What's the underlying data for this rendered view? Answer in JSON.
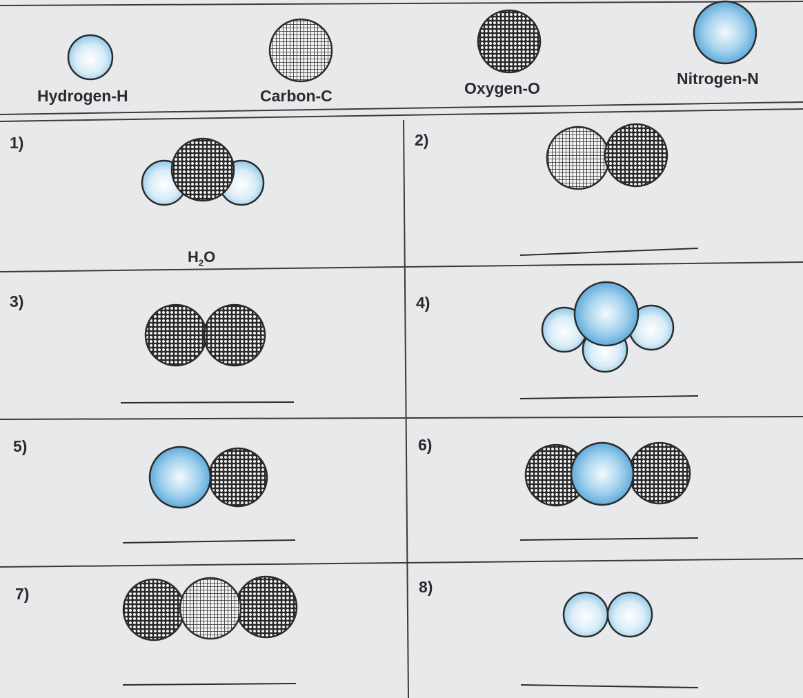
{
  "legend": {
    "hydrogen": "Hydrogen-H",
    "carbon": "Carbon-C",
    "oxygen": "Oxygen-O",
    "nitrogen": "Nitrogen-N"
  },
  "cells": [
    {
      "number": "1)",
      "atoms": [
        "H",
        "O",
        "H"
      ],
      "answer": "H2O"
    },
    {
      "number": "2)",
      "atoms": [
        "C",
        "O"
      ],
      "answer": ""
    },
    {
      "number": "3)",
      "atoms": [
        "O",
        "O"
      ],
      "answer": ""
    },
    {
      "number": "4)",
      "atoms": [
        "H",
        "N",
        "H",
        "H"
      ],
      "answer": ""
    },
    {
      "number": "5)",
      "atoms": [
        "N",
        "O"
      ],
      "answer": ""
    },
    {
      "number": "6)",
      "atoms": [
        "O",
        "N",
        "O"
      ],
      "answer": ""
    },
    {
      "number": "7)",
      "atoms": [
        "O",
        "C",
        "O"
      ],
      "answer": ""
    },
    {
      "number": "8)",
      "atoms": [
        "H",
        "H"
      ],
      "answer": ""
    }
  ],
  "answer_1": {
    "base": "H",
    "sub": "2",
    "tail": "O"
  },
  "colors": {
    "paper": "#e8e9ea",
    "ink": "#2a2b2e",
    "blue": "#4aa3d6"
  }
}
